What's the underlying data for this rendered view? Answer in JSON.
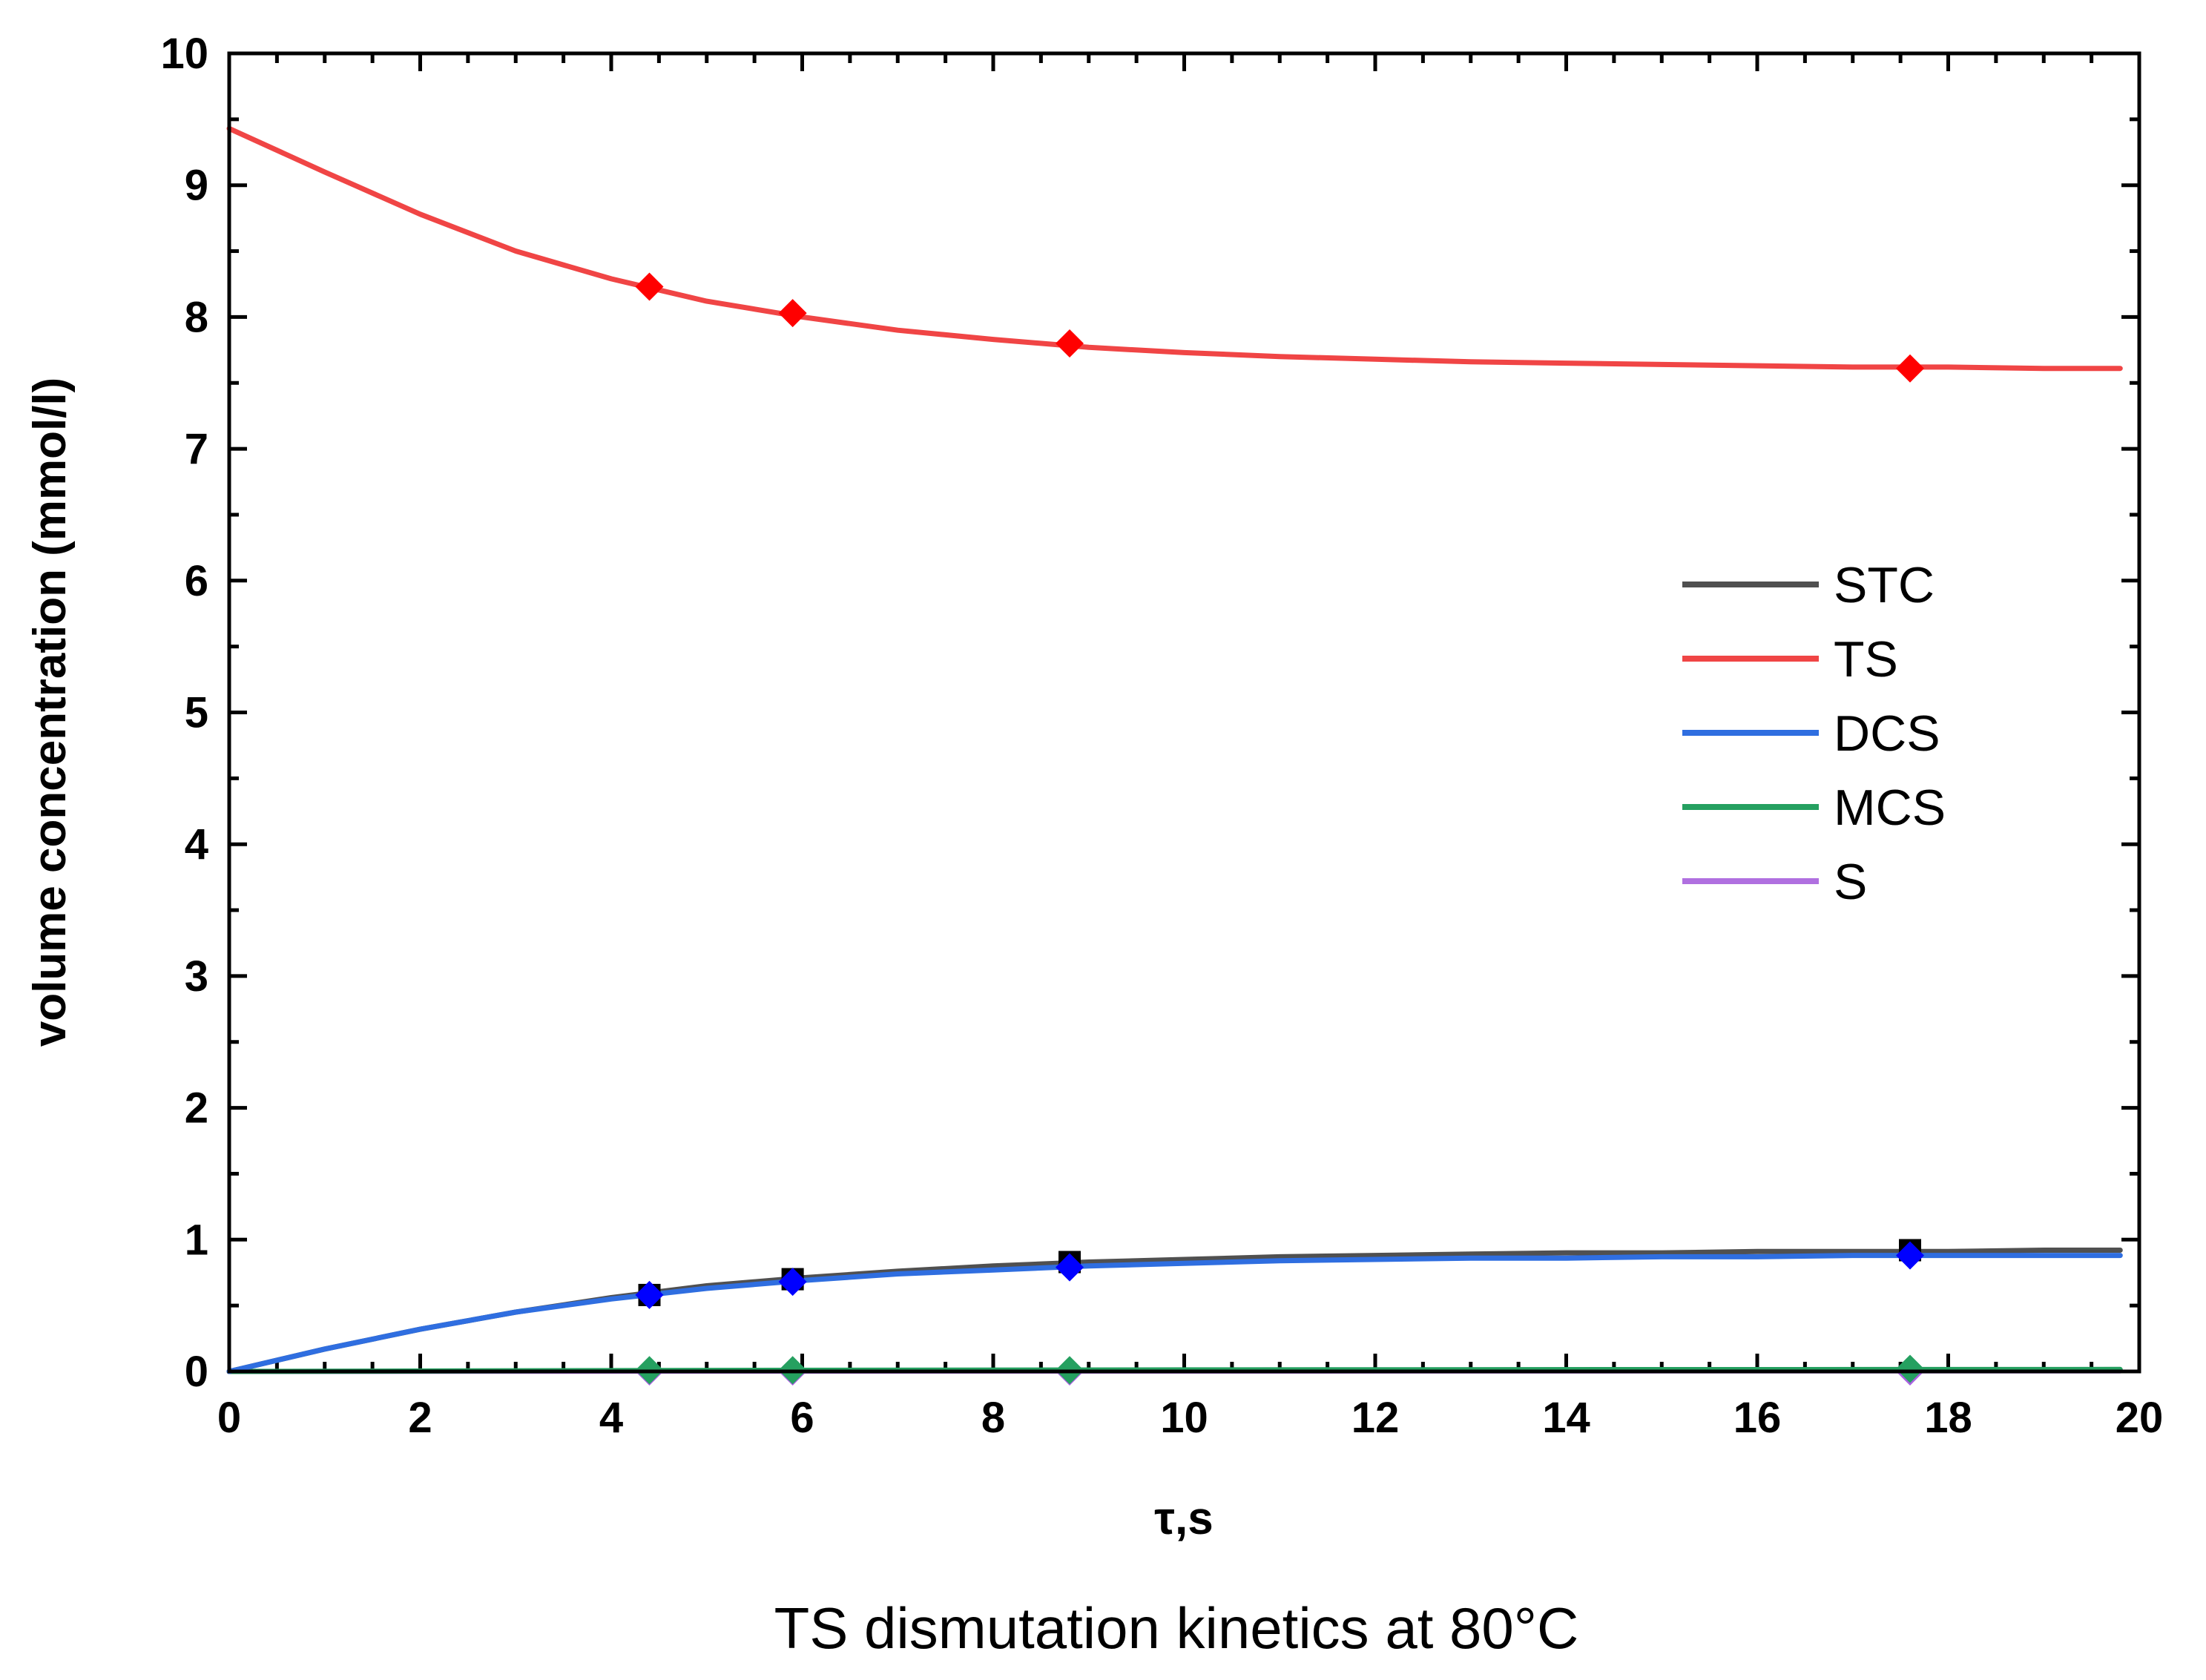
{
  "chart_data": {
    "type": "line",
    "title": "TS dismutation kinetics at 80°C",
    "xlabel": "τ,s",
    "ylabel": "volume concentration (mmol/l)",
    "xlim": [
      0,
      20
    ],
    "ylim": [
      0,
      10
    ],
    "x_ticks": [
      "0",
      "2",
      "4",
      "6",
      "8",
      "10",
      "12",
      "14",
      "16",
      "18",
      "20"
    ],
    "y_ticks": [
      "0",
      "1",
      "2",
      "3",
      "4",
      "5",
      "6",
      "7",
      "8",
      "9",
      "10"
    ],
    "grid": false,
    "legend_position": "right-middle",
    "series": [
      {
        "name": "STC",
        "color": "#505050",
        "marker": "square",
        "marker_color": "#000000",
        "curve": {
          "x": [
            0,
            1,
            2,
            3,
            4,
            5,
            6,
            7,
            8,
            9,
            10,
            11,
            12,
            13,
            14,
            15,
            16,
            17,
            18,
            19,
            19.8
          ],
          "y": [
            0,
            0.17,
            0.32,
            0.45,
            0.56,
            0.65,
            0.71,
            0.76,
            0.8,
            0.83,
            0.85,
            0.87,
            0.88,
            0.89,
            0.9,
            0.9,
            0.91,
            0.91,
            0.91,
            0.92,
            0.92
          ]
        },
        "points": {
          "x": [
            4.4,
            5.9,
            8.8,
            17.6
          ],
          "y": [
            0.58,
            0.7,
            0.83,
            0.92
          ]
        }
      },
      {
        "name": "TS",
        "color": "#f04545",
        "marker": "diamond",
        "marker_color": "#ff0000",
        "curve": {
          "x": [
            0,
            1,
            2,
            3,
            4,
            5,
            6,
            7,
            8,
            9,
            10,
            11,
            12,
            13,
            14,
            15,
            16,
            17,
            18,
            19,
            19.8
          ],
          "y": [
            9.43,
            9.1,
            8.78,
            8.5,
            8.29,
            8.12,
            8.0,
            7.9,
            7.83,
            7.77,
            7.73,
            7.7,
            7.68,
            7.66,
            7.65,
            7.64,
            7.63,
            7.62,
            7.62,
            7.61,
            7.61
          ]
        },
        "points": {
          "x": [
            4.4,
            5.9,
            8.8,
            17.6
          ],
          "y": [
            8.23,
            8.03,
            7.8,
            7.61
          ]
        }
      },
      {
        "name": "DCS",
        "color": "#2f6ee0",
        "marker": "diamond",
        "marker_color": "#0000ff",
        "curve": {
          "x": [
            0,
            1,
            2,
            3,
            4,
            5,
            6,
            7,
            8,
            9,
            10,
            11,
            12,
            13,
            14,
            15,
            16,
            17,
            18,
            19,
            19.8
          ],
          "y": [
            0,
            0.17,
            0.32,
            0.45,
            0.55,
            0.63,
            0.69,
            0.74,
            0.77,
            0.8,
            0.82,
            0.84,
            0.85,
            0.86,
            0.86,
            0.87,
            0.87,
            0.88,
            0.88,
            0.88,
            0.88
          ]
        },
        "points": {
          "x": [
            4.4,
            5.9,
            8.8,
            17.6
          ],
          "y": [
            0.58,
            0.68,
            0.79,
            0.88
          ]
        }
      },
      {
        "name": "MCS",
        "color": "#25a060",
        "marker": "diamond",
        "marker_color": "#25a060",
        "curve": {
          "x": [
            0,
            5,
            10,
            15,
            19.8
          ],
          "y": [
            0,
            0.008,
            0.012,
            0.014,
            0.015
          ]
        },
        "points": {
          "x": [
            4.4,
            5.9,
            8.8,
            17.6
          ],
          "y": [
            0.01,
            0.01,
            0.01,
            0.02
          ]
        }
      },
      {
        "name": "S",
        "color": "#b070e0",
        "marker": "diamond",
        "marker_color": "#a860e0",
        "curve": {
          "x": [
            0,
            5,
            10,
            15,
            19.8
          ],
          "y": [
            0,
            0.002,
            0.003,
            0.004,
            0.004
          ]
        },
        "points": {
          "x": [
            4.4,
            5.9,
            8.8,
            17.6
          ],
          "y": [
            0.0,
            0.0,
            0.0,
            0.0
          ]
        }
      }
    ]
  }
}
